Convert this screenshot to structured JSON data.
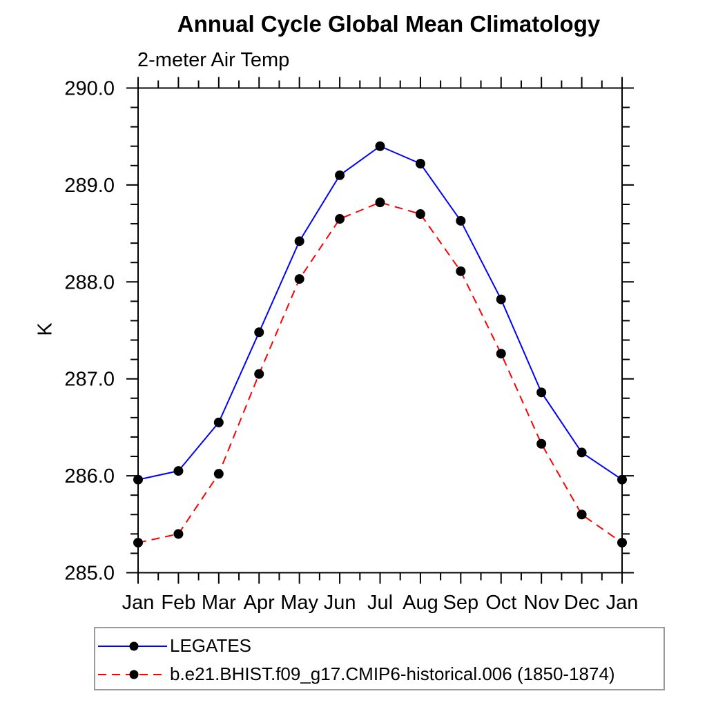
{
  "title": "Annual Cycle Global Mean Climatology",
  "subtitle": "2-meter Air Temp",
  "ylabel": "K",
  "colors": {
    "axis": "#000000",
    "legates_line": "#0000ff",
    "model_line": "#ff0000",
    "marker": "#000000",
    "legend_border": "#9a9a9a"
  },
  "chart_data": {
    "type": "line",
    "title": "Annual Cycle Global Mean Climatology",
    "subtitle": "2-meter Air Temp",
    "xlabel": "",
    "ylabel": "K",
    "categories": [
      "Jan",
      "Feb",
      "Mar",
      "Apr",
      "May",
      "Jun",
      "Jul",
      "Aug",
      "Sep",
      "Oct",
      "Nov",
      "Dec",
      "Jan"
    ],
    "ylim": [
      285.0,
      290.0
    ],
    "ytick_interval": 1.0,
    "ytick_minor_interval": 0.2,
    "ytick_labels": [
      "285.0",
      "286.0",
      "287.0",
      "288.0",
      "289.0",
      "290.0"
    ],
    "grid": false,
    "legend_position": "below-left",
    "series": [
      {
        "name": "LEGATES",
        "color": "#0000ff",
        "style": "solid",
        "marker": "circle",
        "marker_color": "#000000",
        "values": [
          285.96,
          286.05,
          286.55,
          287.48,
          288.42,
          289.1,
          289.4,
          289.22,
          288.63,
          287.82,
          286.86,
          286.24,
          285.96
        ]
      },
      {
        "name": "b.e21.BHIST.f09_g17.CMIP6-historical.006 (1850-1874)",
        "color": "#ff0000",
        "style": "dashed",
        "marker": "circle",
        "marker_color": "#000000",
        "values": [
          285.31,
          285.4,
          286.02,
          287.05,
          288.03,
          288.65,
          288.82,
          288.7,
          288.11,
          287.26,
          286.33,
          285.6,
          285.31
        ]
      }
    ]
  }
}
